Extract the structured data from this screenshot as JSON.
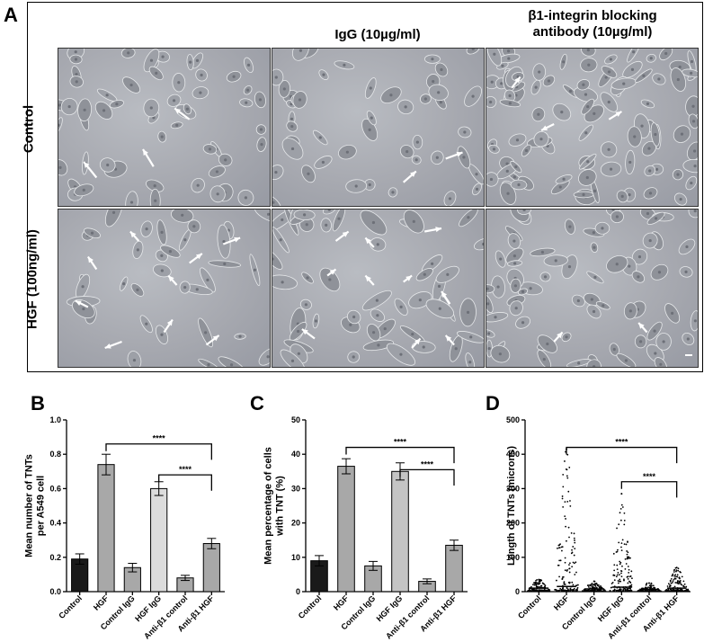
{
  "figure": {
    "panel_a": {
      "letter": "A",
      "columns": [
        "",
        "IgG (10µg/ml)",
        "β1-integrin blocking antibody (10µg/ml)"
      ],
      "column_lines": [
        [
          "IgG (10µg/ml)"
        ],
        [
          "β1-integrin blocking",
          "antibody (10µg/ml)"
        ]
      ],
      "rows": [
        "Control",
        "HGF (100ng/ml)"
      ],
      "images": [
        {
          "row": 0,
          "col": 0,
          "arrows": 3
        },
        {
          "row": 0,
          "col": 1,
          "arrows": 2
        },
        {
          "row": 0,
          "col": 2,
          "arrows": 3
        },
        {
          "row": 1,
          "col": 0,
          "arrows": 9
        },
        {
          "row": 1,
          "col": 1,
          "arrows": 10
        },
        {
          "row": 1,
          "col": 2,
          "arrows": 2
        }
      ]
    },
    "panels": [
      {
        "letter": "B"
      },
      {
        "letter": "C"
      },
      {
        "letter": "D"
      }
    ]
  },
  "chart_data": [
    {
      "type": "bar",
      "panel": "B",
      "categories": [
        "Control",
        "HGF",
        "Control IgG",
        "HGF IgG",
        "Anti-β1 control",
        "Anti-β1 HGF"
      ],
      "values": [
        0.19,
        0.74,
        0.14,
        0.6,
        0.08,
        0.28
      ],
      "errors": [
        0.03,
        0.06,
        0.025,
        0.04,
        0.015,
        0.03
      ],
      "bar_colors": [
        "#1a1a1a",
        "#a8a8a8",
        "#a8a8a8",
        "#dcdcdc",
        "#a8a8a8",
        "#a8a8a8"
      ],
      "ylabel_lines": [
        "Mean number of TNTs",
        "per A549 cell"
      ],
      "ylim": [
        0,
        1.0
      ],
      "yticks": [
        "0.0",
        "0.2",
        "0.4",
        "0.6",
        "0.8",
        "1.0"
      ],
      "ytick_values": [
        0,
        0.2,
        0.4,
        0.6,
        0.8,
        1.0
      ],
      "significance": [
        {
          "from": 1,
          "to": 5,
          "label": "****",
          "y": 0.86
        },
        {
          "from": 3,
          "to": 5,
          "label": "****",
          "y": 0.68
        }
      ]
    },
    {
      "type": "bar",
      "panel": "C",
      "categories": [
        "Control",
        "HGF",
        "Control IgG",
        "HGF IgG",
        "Anti-β1 control",
        "Anti-β1 HGF"
      ],
      "values": [
        9,
        36.5,
        7.5,
        35,
        3,
        13.5
      ],
      "errors": [
        1.5,
        2.2,
        1.3,
        2.5,
        0.7,
        1.5
      ],
      "bar_colors": [
        "#1a1a1a",
        "#a8a8a8",
        "#a8a8a8",
        "#c4c4c4",
        "#a8a8a8",
        "#a8a8a8"
      ],
      "ylabel_lines": [
        "Mean percentage of cells",
        "with TNT (%)"
      ],
      "ylim": [
        0,
        50
      ],
      "yticks": [
        "0",
        "10",
        "20",
        "30",
        "40",
        "50"
      ],
      "ytick_values": [
        0,
        10,
        20,
        30,
        40,
        50
      ],
      "significance": [
        {
          "from": 1,
          "to": 5,
          "label": "****",
          "y": 42
        },
        {
          "from": 3,
          "to": 5,
          "label": "****",
          "y": 35.5
        }
      ]
    },
    {
      "type": "scatter",
      "panel": "D",
      "categories": [
        "Control",
        "HGF",
        "Control IgG",
        "HGF IgG",
        "Anti-β1 control",
        "Anti-β1 HGF"
      ],
      "medians": [
        10,
        15,
        8,
        13,
        7,
        10
      ],
      "max_values": [
        35,
        415,
        30,
        285,
        25,
        70
      ],
      "ylabel_lines": [
        "Length of TNTs (microns)"
      ],
      "ylim": [
        0,
        500
      ],
      "yticks": [
        "0",
        "100",
        "200",
        "300",
        "400",
        "500"
      ],
      "ytick_values": [
        0,
        100,
        200,
        300,
        400,
        500
      ],
      "significance": [
        {
          "from": 1,
          "to": 5,
          "label": "****",
          "y": 420
        },
        {
          "from": 3,
          "to": 5,
          "label": "****",
          "y": 320
        }
      ]
    }
  ]
}
